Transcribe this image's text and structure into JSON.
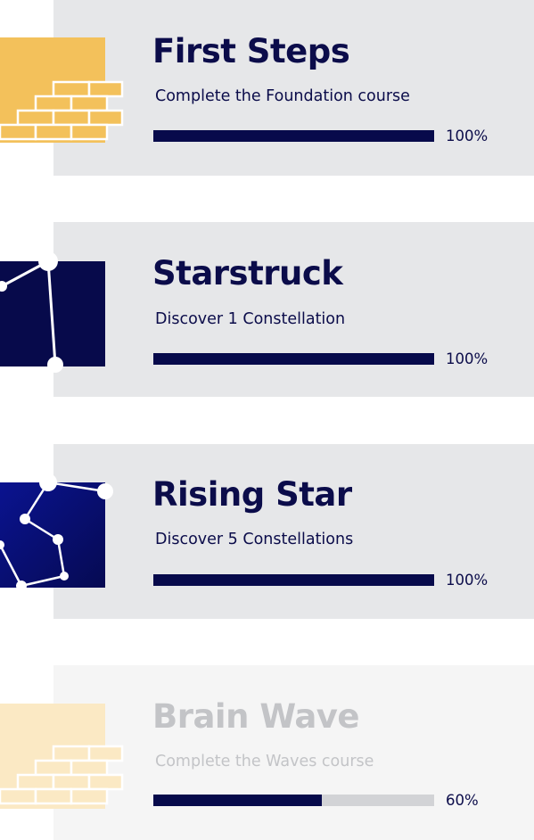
{
  "achievements": [
    {
      "title": "First Steps",
      "subtitle": "Complete the Foundation course",
      "progress_label": "100%",
      "progress": 1.0,
      "icon": "brick-wall-icon",
      "locked": false
    },
    {
      "title": "Starstruck",
      "subtitle": "Discover 1 Constellation",
      "progress_label": "100%",
      "progress": 1.0,
      "icon": "constellation-icon",
      "locked": false
    },
    {
      "title": "Rising Star",
      "subtitle": "Discover 5 Constellations",
      "progress_label": "100%",
      "progress": 1.0,
      "icon": "constellations-icon",
      "locked": false
    },
    {
      "title": "Brain Wave",
      "subtitle": "Complete the Waves course",
      "progress_label": "60%",
      "progress": 0.6,
      "icon": "brick-wall-icon",
      "locked": true
    }
  ],
  "colors": {
    "navy": "#070a4b",
    "card": "#e6e7e9",
    "card_locked": "#f5f5f5",
    "brick": "#f3c15b",
    "brick_locked": "#fbe9c4",
    "text_locked": "#c3c4c7"
  }
}
